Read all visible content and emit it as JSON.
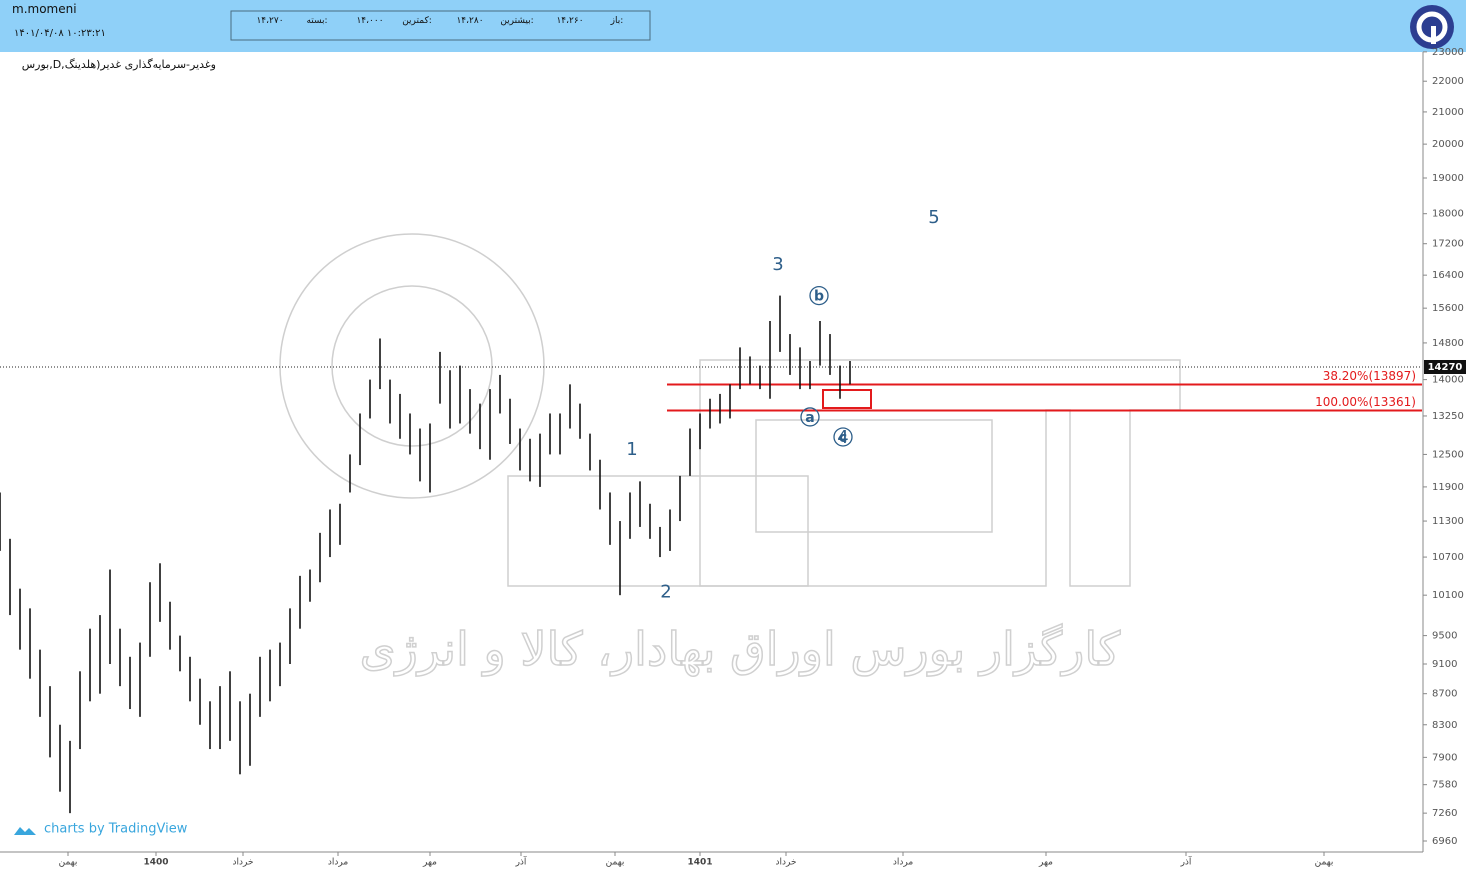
{
  "header": {
    "user": "m.momeni",
    "timestamp": "۱۴۰۱/۰۴/۰۸ ۱۰:۲۳:۲۱",
    "quote": [
      {
        "label": "باز:",
        "value": "۱۴،۲۶۰"
      },
      {
        "label": "بیشترین:",
        "value": "۱۴،۲۸۰"
      },
      {
        "label": "کمترین:",
        "value": "۱۴،۰۰۰"
      },
      {
        "label": "بسته:",
        "value": "۱۴،۲۷۰"
      }
    ]
  },
  "symbol": "بورس,D,وغدیر-سرمایه‌گذاری غدیر(هلدینگ",
  "watermark": "کارگزار بورس اوراق بهادار، کالا و انرژی",
  "credit": "charts by TradingView",
  "chart_data": {
    "type": "hl-bars",
    "log_scale": true,
    "color": "#111111",
    "x": [
      0,
      1,
      2,
      3,
      4,
      5,
      6,
      7,
      8,
      9,
      10,
      11,
      12,
      13,
      14,
      15,
      16,
      17,
      18,
      19,
      20,
      21,
      22,
      23,
      24,
      25,
      26,
      27,
      28,
      29,
      30,
      31,
      32,
      33,
      34,
      35,
      36,
      37,
      38,
      39,
      40,
      41,
      42,
      43,
      44,
      45,
      46,
      47,
      48,
      49,
      50,
      51,
      52,
      53,
      54,
      55,
      56,
      57,
      58,
      59,
      60,
      61,
      62,
      63,
      64,
      65,
      66,
      67,
      68,
      69,
      70,
      71,
      72,
      73,
      74,
      75,
      76,
      77,
      78,
      79,
      80,
      81,
      82,
      83,
      84,
      85
    ],
    "high": [
      11800,
      11000,
      10200,
      9900,
      9300,
      8800,
      8300,
      8100,
      9000,
      9600,
      9800,
      10500,
      9600,
      9200,
      9400,
      10300,
      10600,
      10000,
      9500,
      9200,
      8900,
      8600,
      8800,
      9000,
      8600,
      8700,
      9200,
      9300,
      9400,
      9900,
      10400,
      10500,
      11100,
      11500,
      11600,
      12500,
      13300,
      14000,
      14900,
      14000,
      13700,
      13300,
      13000,
      13100,
      14600,
      14200,
      14300,
      13800,
      13500,
      13800,
      14100,
      13600,
      13000,
      12800,
      12900,
      13300,
      13300,
      13900,
      13500,
      12900,
      12400,
      11800,
      11300,
      11800,
      12000,
      11600,
      11200,
      11500,
      12100,
      13000,
      13300,
      13600,
      13700,
      13900,
      14700,
      14500,
      14300,
      15300,
      15900,
      15000,
      14700,
      14400,
      15300,
      15000,
      14300,
      14400
    ],
    "low": [
      10800,
      9800,
      9300,
      8900,
      8400,
      7900,
      7500,
      7260,
      8000,
      8600,
      8700,
      9100,
      8800,
      8500,
      8400,
      9200,
      9700,
      9300,
      9000,
      8600,
      8300,
      8000,
      8000,
      8100,
      7700,
      7800,
      8400,
      8600,
      8800,
      9100,
      9600,
      10000,
      10300,
      10700,
      10900,
      11800,
      12300,
      13200,
      13800,
      13100,
      12800,
      12500,
      12000,
      11800,
      13500,
      13000,
      13100,
      12900,
      12600,
      12400,
      13300,
      12700,
      12200,
      12000,
      11900,
      12500,
      12500,
      13000,
      12800,
      12200,
      11500,
      10900,
      10100,
      11000,
      11200,
      11000,
      10700,
      10800,
      11300,
      12100,
      12600,
      13000,
      13100,
      13200,
      13800,
      13900,
      13800,
      13600,
      14600,
      14100,
      13800,
      13800,
      14300,
      14100,
      13600,
      13900
    ],
    "xlim": [
      0,
      142.3
    ],
    "xticks": [
      {
        "value": 6.8,
        "label": "بهمن"
      },
      {
        "value": 15.6,
        "label": "1400"
      },
      {
        "value": 24.3,
        "label": "خرداد"
      },
      {
        "value": 33.8,
        "label": "مرداد"
      },
      {
        "value": 43,
        "label": "مهر"
      },
      {
        "value": 52.1,
        "label": "آذر"
      },
      {
        "value": 61.5,
        "label": "بهمن"
      },
      {
        "value": 70,
        "label": "1401"
      },
      {
        "value": 78.6,
        "label": "خرداد"
      },
      {
        "value": 90.3,
        "label": "مرداد"
      },
      {
        "value": 104.6,
        "label": "مهر"
      },
      {
        "value": 118.6,
        "label": "آذر"
      },
      {
        "value": 132.4,
        "label": "بهمن"
      }
    ],
    "ylim": [
      6845,
      23100
    ],
    "yticks": [
      6960,
      7260,
      7580,
      7900,
      8300,
      8700,
      9100,
      9500,
      10100,
      10700,
      11300,
      11900,
      12500,
      13250,
      14000,
      14800,
      15600,
      16400,
      17200,
      18000,
      19000,
      20000,
      21000,
      22000,
      23000
    ],
    "last": 14270,
    "levels": [
      {
        "value": 13897,
        "label": "38.20%(13897)",
        "x": 66.7,
        "color": "#e31a1c"
      },
      {
        "value": 13361,
        "label": "100.00%(13361)",
        "x": 66.7,
        "color": "#e31a1c"
      }
    ],
    "annotations": [
      {
        "text": "1",
        "x": 63.2,
        "y": 12600
      },
      {
        "text": "2",
        "x": 66.6,
        "y": 10160
      },
      {
        "text": "3",
        "x": 77.8,
        "y": 16680
      },
      {
        "text": "5",
        "x": 93.4,
        "y": 17915
      },
      {
        "text": "a",
        "x": 81,
        "y": 13230,
        "circled": true
      },
      {
        "text": "b",
        "x": 81.9,
        "y": 15900,
        "circled": true
      },
      {
        "text": "c",
        "x": 84.3,
        "y": 12835,
        "circled": true
      },
      {
        "text": "4",
        "x": 84.3,
        "y": 12835
      }
    ]
  }
}
